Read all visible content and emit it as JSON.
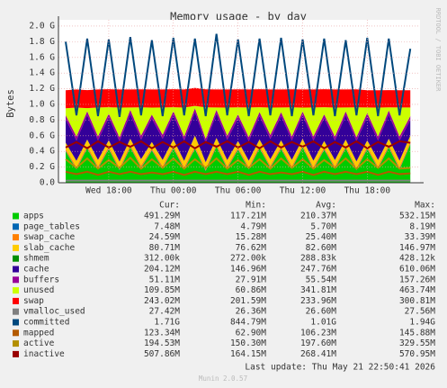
{
  "chart_data": {
    "type": "area",
    "title": "Memory usage - by day",
    "y_label": "Bytes",
    "watermark": "RRDTOOL / TOBI OETIKER",
    "x": [
      14,
      15,
      16,
      17,
      18,
      19,
      20,
      21,
      22,
      23,
      24,
      25,
      26,
      27,
      28,
      29,
      30,
      31,
      32,
      33,
      34,
      35,
      36,
      37,
      38,
      39,
      40,
      41,
      42,
      43,
      44,
      45,
      46
    ],
    "xlim": [
      13.33,
      46.9
    ],
    "xticks": [
      {
        "value": 18,
        "label": "Wed 18:00"
      },
      {
        "value": 24,
        "label": "Thu 00:00"
      },
      {
        "value": 30,
        "label": "Thu 06:00"
      },
      {
        "value": 36,
        "label": "Thu 12:00"
      },
      {
        "value": 42,
        "label": "Thu 18:00"
      }
    ],
    "ylim": [
      0,
      2.08
    ],
    "yticks": [
      {
        "value": 0,
        "label": "0.0"
      },
      {
        "value": 0.2,
        "label": "0.2 G"
      },
      {
        "value": 0.4,
        "label": "0.4 G"
      },
      {
        "value": 0.6,
        "label": "0.6 G"
      },
      {
        "value": 0.8,
        "label": "0.8 G"
      },
      {
        "value": 1.0,
        "label": "1.0 G"
      },
      {
        "value": 1.2,
        "label": "1.2 G"
      },
      {
        "value": 1.4,
        "label": "1.4 G"
      },
      {
        "value": 1.6,
        "label": "1.6 G"
      },
      {
        "value": 1.8,
        "label": "1.8 G"
      },
      {
        "value": 2.0,
        "label": "2.0 G"
      }
    ],
    "grid": true,
    "stat_headers": [
      "Cur:",
      "Min:",
      "Avg:",
      "Max:"
    ],
    "series": [
      {
        "name": "apps",
        "color": "#00cc00",
        "style": "area",
        "stats": [
          "491.29M",
          "117.21M",
          "210.37M",
          "532.15M"
        ],
        "values": [
          0.4,
          0.17,
          0.44,
          0.18,
          0.43,
          0.16,
          0.45,
          0.19,
          0.41,
          0.18,
          0.44,
          0.17,
          0.43,
          0.15,
          0.46,
          0.18,
          0.42,
          0.17,
          0.44,
          0.19,
          0.43,
          0.18,
          0.45,
          0.17,
          0.42,
          0.18,
          0.44,
          0.16,
          0.43,
          0.18,
          0.45,
          0.17,
          0.49
        ]
      },
      {
        "name": "page_tables",
        "color": "#0066b3",
        "style": "area",
        "stats": [
          "7.48M",
          "4.79M",
          "5.70M",
          "8.19M"
        ],
        "values": [
          0.006,
          0.006,
          0.006,
          0.006,
          0.006,
          0.006,
          0.006,
          0.006,
          0.006,
          0.006,
          0.006,
          0.006,
          0.006,
          0.006,
          0.006,
          0.006,
          0.006,
          0.006,
          0.006,
          0.006,
          0.006,
          0.006,
          0.006,
          0.006,
          0.006,
          0.006,
          0.006,
          0.006,
          0.006,
          0.006,
          0.006,
          0.006,
          0.007
        ]
      },
      {
        "name": "swap_cache",
        "color": "#ff8000",
        "style": "area",
        "stats": [
          "24.59M",
          "15.28M",
          "25.40M",
          "33.39M"
        ],
        "values": [
          0.025,
          0.024,
          0.026,
          0.025,
          0.027,
          0.024,
          0.025,
          0.026,
          0.024,
          0.025,
          0.027,
          0.024,
          0.025,
          0.026,
          0.025,
          0.024,
          0.026,
          0.025,
          0.027,
          0.024,
          0.025,
          0.026,
          0.024,
          0.025,
          0.027,
          0.024,
          0.025,
          0.026,
          0.025,
          0.024,
          0.026,
          0.025,
          0.024
        ]
      },
      {
        "name": "slab_cache",
        "color": "#ffcc00",
        "style": "area",
        "stats": [
          "80.71M",
          "76.62M",
          "82.60M",
          "146.97M"
        ],
        "values": [
          0.08,
          0.08,
          0.08,
          0.08,
          0.08,
          0.08,
          0.08,
          0.08,
          0.08,
          0.08,
          0.08,
          0.08,
          0.14,
          0.08,
          0.08,
          0.08,
          0.08,
          0.08,
          0.08,
          0.08,
          0.08,
          0.08,
          0.08,
          0.08,
          0.08,
          0.08,
          0.08,
          0.08,
          0.08,
          0.08,
          0.08,
          0.08,
          0.08
        ]
      },
      {
        "name": "shmem",
        "color": "#008f00",
        "style": "area",
        "stats": [
          "312.00k",
          "272.00k",
          "288.83k",
          "428.12k"
        ],
        "values": [
          0.0003,
          0.0003,
          0.0003,
          0.0003,
          0.0003,
          0.0003,
          0.0003,
          0.0003,
          0.0003,
          0.0003,
          0.0003,
          0.0003,
          0.0003,
          0.0003,
          0.0003,
          0.0003,
          0.0003,
          0.0003,
          0.0003,
          0.0003,
          0.0003,
          0.0003,
          0.0003,
          0.0003,
          0.0003,
          0.0003,
          0.0003,
          0.0003,
          0.0003,
          0.0003,
          0.0003,
          0.0003,
          0.0003
        ]
      },
      {
        "name": "cache",
        "color": "#330099",
        "style": "area",
        "stats": [
          "204.12M",
          "146.96M",
          "247.76M",
          "610.06M"
        ],
        "values": [
          0.3,
          0.26,
          0.31,
          0.25,
          0.29,
          0.26,
          0.32,
          0.25,
          0.3,
          0.27,
          0.31,
          0.26,
          0.3,
          0.25,
          0.31,
          0.26,
          0.29,
          0.25,
          0.3,
          0.26,
          0.31,
          0.25,
          0.3,
          0.26,
          0.29,
          0.25,
          0.31,
          0.26,
          0.3,
          0.25,
          0.31,
          0.26,
          0.2
        ]
      },
      {
        "name": "buffers",
        "color": "#990099",
        "style": "area",
        "stats": [
          "51.11M",
          "27.91M",
          "55.54M",
          "157.26M"
        ],
        "values": [
          0.05,
          0.05,
          0.05,
          0.05,
          0.05,
          0.05,
          0.05,
          0.05,
          0.05,
          0.05,
          0.05,
          0.05,
          0.05,
          0.05,
          0.05,
          0.05,
          0.05,
          0.05,
          0.05,
          0.05,
          0.05,
          0.05,
          0.05,
          0.05,
          0.05,
          0.05,
          0.05,
          0.05,
          0.05,
          0.05,
          0.05,
          0.05,
          0.05
        ]
      },
      {
        "name": "unused",
        "color": "#ccff00",
        "style": "area",
        "stats": [
          "109.85M",
          "60.86M",
          "341.81M",
          "463.74M"
        ],
        "values": [
          0.09,
          0.37,
          0.04,
          0.37,
          0.08,
          0.38,
          0.03,
          0.36,
          0.09,
          0.35,
          0.05,
          0.37,
          0.03,
          0.4,
          0.03,
          0.36,
          0.09,
          0.38,
          0.06,
          0.35,
          0.06,
          0.37,
          0.05,
          0.37,
          0.09,
          0.37,
          0.05,
          0.38,
          0.07,
          0.37,
          0.04,
          0.37,
          0.11
        ]
      },
      {
        "name": "swap",
        "color": "#ff0000",
        "style": "area",
        "stats": [
          "243.02M",
          "201.59M",
          "233.96M",
          "300.81M"
        ],
        "values": [
          0.23,
          0.23,
          0.23,
          0.23,
          0.23,
          0.23,
          0.23,
          0.23,
          0.23,
          0.23,
          0.23,
          0.23,
          0.23,
          0.23,
          0.23,
          0.23,
          0.23,
          0.23,
          0.23,
          0.23,
          0.23,
          0.23,
          0.23,
          0.23,
          0.23,
          0.23,
          0.23,
          0.23,
          0.22,
          0.22,
          0.22,
          0.22,
          0.22
        ]
      },
      {
        "name": "vmalloc_used",
        "color": "#808080",
        "style": "line",
        "stats": [
          "27.42M",
          "26.36M",
          "26.60M",
          "27.56M"
        ],
        "values": [
          0.027,
          0.027,
          0.027,
          0.027,
          0.027,
          0.027,
          0.027,
          0.027,
          0.027,
          0.027,
          0.027,
          0.027,
          0.027,
          0.027,
          0.027,
          0.027,
          0.027,
          0.027,
          0.027,
          0.027,
          0.027,
          0.027,
          0.027,
          0.027,
          0.027,
          0.027,
          0.027,
          0.027,
          0.027,
          0.027,
          0.027,
          0.027,
          0.027
        ]
      },
      {
        "name": "committed",
        "color": "#00487d",
        "style": "line",
        "stats": [
          "1.71G",
          "844.79M",
          "1.01G",
          "1.94G"
        ],
        "values": [
          1.8,
          0.86,
          1.84,
          0.85,
          1.83,
          0.84,
          1.86,
          0.86,
          1.82,
          0.85,
          1.85,
          0.86,
          1.84,
          0.85,
          1.9,
          0.86,
          1.83,
          0.85,
          1.84,
          0.86,
          1.85,
          0.85,
          1.83,
          0.86,
          1.84,
          0.85,
          1.82,
          0.86,
          1.85,
          0.85,
          1.84,
          0.86,
          1.71
        ]
      },
      {
        "name": "mapped",
        "color": "#b35a00",
        "style": "line",
        "stats": [
          "123.34M",
          "62.90M",
          "106.23M",
          "145.88M"
        ],
        "values": [
          0.14,
          0.11,
          0.14,
          0.1,
          0.14,
          0.11,
          0.14,
          0.11,
          0.13,
          0.11,
          0.14,
          0.1,
          0.14,
          0.11,
          0.14,
          0.11,
          0.14,
          0.1,
          0.14,
          0.11,
          0.13,
          0.11,
          0.14,
          0.1,
          0.14,
          0.11,
          0.14,
          0.11,
          0.14,
          0.1,
          0.14,
          0.11,
          0.12
        ]
      },
      {
        "name": "active",
        "color": "#b38f00",
        "style": "line",
        "stats": [
          "194.53M",
          "150.30M",
          "197.60M",
          "329.55M"
        ],
        "values": [
          0.3,
          0.19,
          0.31,
          0.18,
          0.29,
          0.19,
          0.32,
          0.18,
          0.3,
          0.19,
          0.31,
          0.18,
          0.3,
          0.19,
          0.31,
          0.18,
          0.29,
          0.19,
          0.3,
          0.18,
          0.31,
          0.19,
          0.3,
          0.18,
          0.29,
          0.19,
          0.31,
          0.18,
          0.3,
          0.19,
          0.31,
          0.18,
          0.19
        ]
      },
      {
        "name": "inactive",
        "color": "#990000",
        "style": "line",
        "stats": [
          "507.86M",
          "164.15M",
          "268.41M",
          "570.95M"
        ],
        "values": [
          0.45,
          0.52,
          0.44,
          0.53,
          0.45,
          0.52,
          0.46,
          0.53,
          0.44,
          0.52,
          0.45,
          0.53,
          0.44,
          0.52,
          0.46,
          0.53,
          0.45,
          0.52,
          0.44,
          0.53,
          0.45,
          0.52,
          0.46,
          0.53,
          0.44,
          0.52,
          0.45,
          0.53,
          0.44,
          0.52,
          0.46,
          0.53,
          0.51
        ]
      }
    ],
    "last_update": "Last update: Thu May 21 22:50:41 2026",
    "version": "Munin 2.0.57"
  }
}
